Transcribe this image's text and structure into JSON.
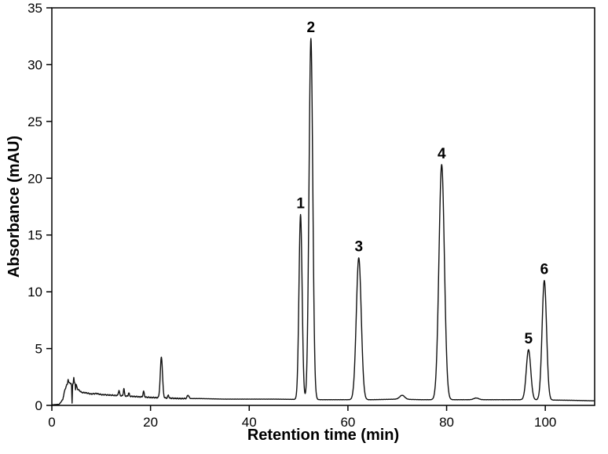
{
  "figure": {
    "background_color": "#ffffff",
    "frame_color": "#000000"
  },
  "chart_data": {
    "type": "line",
    "title": "",
    "xlabel": "Retention time (min)",
    "ylabel": "Absorbance (mAU)",
    "xlim": [
      0,
      110
    ],
    "ylim": [
      0,
      35
    ],
    "x_ticks": [
      0,
      20,
      40,
      60,
      80,
      100
    ],
    "y_ticks": [
      0,
      5,
      10,
      15,
      20,
      25,
      30,
      35
    ],
    "grid": false,
    "legend": null,
    "line_color": "#111111",
    "peaks": [
      {
        "label": "1",
        "retention_time": 50.4,
        "absorbance": 16.8,
        "width": 0.32
      },
      {
        "label": "2",
        "retention_time": 52.5,
        "absorbance": 32.3,
        "width": 0.38
      },
      {
        "label": "3",
        "retention_time": 62.2,
        "absorbance": 13.0,
        "width": 0.5
      },
      {
        "label": "4",
        "retention_time": 79.0,
        "absorbance": 21.2,
        "width": 0.55
      },
      {
        "label": "5",
        "retention_time": 96.6,
        "absorbance": 4.9,
        "width": 0.45
      },
      {
        "label": "6",
        "retention_time": 99.8,
        "absorbance": 11.0,
        "width": 0.45
      }
    ],
    "minor_features": [
      {
        "x": 3.3,
        "h": 0.4,
        "w": 0.06
      },
      {
        "x": 4.1,
        "h": -1.7,
        "w": 0.05
      },
      {
        "x": 4.45,
        "h": 0.5,
        "w": 0.05
      },
      {
        "x": 4.8,
        "h": -0.6,
        "w": 0.04
      },
      {
        "x": 13.6,
        "h": 0.45,
        "w": 0.12
      },
      {
        "x": 14.6,
        "h": 0.65,
        "w": 0.1
      },
      {
        "x": 15.6,
        "h": 0.3,
        "w": 0.1
      },
      {
        "x": 18.6,
        "h": 0.5,
        "w": 0.12
      },
      {
        "x": 22.2,
        "h": 3.6,
        "w": 0.22
      },
      {
        "x": 23.6,
        "h": 0.25,
        "w": 0.12
      },
      {
        "x": 27.6,
        "h": 0.3,
        "w": 0.18
      },
      {
        "x": 71.0,
        "h": 0.35,
        "w": 0.5
      },
      {
        "x": 86.0,
        "h": 0.15,
        "w": 0.5
      }
    ],
    "baseline_points": [
      [
        0,
        0.05
      ],
      [
        1.5,
        0.1
      ],
      [
        2.2,
        0.5
      ],
      [
        2.6,
        1.3
      ],
      [
        3.0,
        1.8
      ],
      [
        3.5,
        2.0
      ],
      [
        4.0,
        1.9
      ],
      [
        4.8,
        2.0
      ],
      [
        5.2,
        1.45
      ],
      [
        6.0,
        1.15
      ],
      [
        7.0,
        1.1
      ],
      [
        8.0,
        1.0
      ],
      [
        9.0,
        1.05
      ],
      [
        10,
        0.95
      ],
      [
        12,
        0.9
      ],
      [
        14,
        0.85
      ],
      [
        16,
        0.8
      ],
      [
        18,
        0.75
      ],
      [
        20,
        0.7
      ],
      [
        23,
        0.65
      ],
      [
        26,
        0.6
      ],
      [
        30,
        0.6
      ],
      [
        35,
        0.55
      ],
      [
        45,
        0.55
      ],
      [
        55,
        0.5
      ],
      [
        65,
        0.5
      ],
      [
        70,
        0.55
      ],
      [
        75,
        0.5
      ],
      [
        85,
        0.5
      ],
      [
        95,
        0.5
      ],
      [
        105,
        0.45
      ],
      [
        110,
        0.4
      ]
    ]
  }
}
